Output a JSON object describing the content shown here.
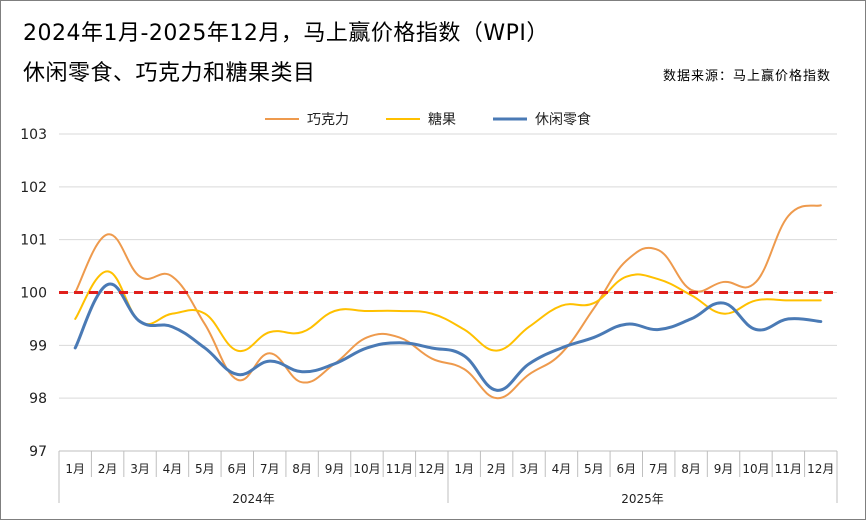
{
  "title_line1": "2024年1月-2025年12月，马上赢价格指数（WPI）",
  "title_line2": "休闲零食、巧克力和糖果类目",
  "source": "数据来源：马上赢价格指数",
  "chart_data": {
    "type": "line",
    "categories": [
      "1月",
      "2月",
      "3月",
      "4月",
      "5月",
      "6月",
      "7月",
      "8月",
      "9月",
      "10月",
      "11月",
      "12月",
      "1月",
      "2月",
      "3月",
      "4月",
      "5月",
      "6月",
      "7月",
      "8月",
      "9月",
      "10月",
      "11月",
      "12月"
    ],
    "year_groups": [
      {
        "label": "2024年",
        "start": 0,
        "end": 11
      },
      {
        "label": "2025年",
        "start": 12,
        "end": 23
      }
    ],
    "yticks": [
      "97",
      "98",
      "99",
      "100",
      "101",
      "102",
      "103"
    ],
    "ylim": [
      97,
      103
    ],
    "reference_line": {
      "value": 100,
      "color": "#e0201c",
      "style": "dashed"
    },
    "legend_position": "top",
    "series": [
      {
        "name": "巧克力",
        "color": "#ee9a4d",
        "values": [
          100.0,
          101.1,
          100.3,
          100.3,
          99.4,
          98.35,
          98.85,
          98.3,
          98.65,
          99.15,
          99.15,
          98.75,
          98.55,
          98.0,
          98.45,
          98.85,
          99.7,
          100.6,
          100.8,
          100.05,
          100.2,
          100.2,
          101.45,
          101.65
        ]
      },
      {
        "name": "糖果",
        "color": "#ffc000",
        "values": [
          99.5,
          100.4,
          99.45,
          99.6,
          99.6,
          98.9,
          99.25,
          99.25,
          99.65,
          99.65,
          99.65,
          99.6,
          99.3,
          98.9,
          99.35,
          99.75,
          99.8,
          100.3,
          100.25,
          99.95,
          99.6,
          99.85,
          99.85,
          99.85
        ]
      },
      {
        "name": "休闲零食",
        "color": "#4a7ab5",
        "values": [
          98.95,
          100.15,
          99.45,
          99.35,
          98.95,
          98.45,
          98.7,
          98.5,
          98.65,
          98.95,
          99.05,
          98.95,
          98.8,
          98.15,
          98.65,
          98.95,
          99.15,
          99.4,
          99.3,
          99.5,
          99.8,
          99.3,
          99.5,
          99.45
        ]
      }
    ]
  }
}
